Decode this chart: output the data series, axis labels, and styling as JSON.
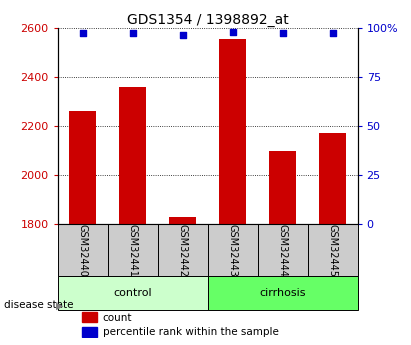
{
  "title": "GDS1354 / 1398892_at",
  "samples": [
    "GSM32440",
    "GSM32441",
    "GSM32442",
    "GSM32443",
    "GSM32444",
    "GSM32445"
  ],
  "counts": [
    2260,
    2360,
    1830,
    2555,
    2100,
    2170
  ],
  "percentile_ranks": [
    97,
    97,
    96,
    98,
    97,
    97
  ],
  "ylim_left": [
    1800,
    2600
  ],
  "ylim_right": [
    0,
    100
  ],
  "yticks_left": [
    1800,
    2000,
    2200,
    2400,
    2600
  ],
  "yticks_right": [
    0,
    25,
    50,
    75,
    100
  ],
  "bar_color": "#cc0000",
  "dot_color": "#0000cc",
  "groups": [
    {
      "label": "control",
      "indices": [
        0,
        1,
        2
      ],
      "color": "#ccffcc"
    },
    {
      "label": "cirrhosis",
      "indices": [
        3,
        4,
        5
      ],
      "color": "#66ff66"
    }
  ],
  "group_label_prefix": "disease state",
  "legend_items": [
    {
      "label": "count",
      "color": "#cc0000"
    },
    {
      "label": "percentile rank within the sample",
      "color": "#0000cc"
    }
  ],
  "sample_box_color": "#cccccc",
  "title_fontsize": 10,
  "tick_fontsize": 8,
  "bar_width": 0.55
}
